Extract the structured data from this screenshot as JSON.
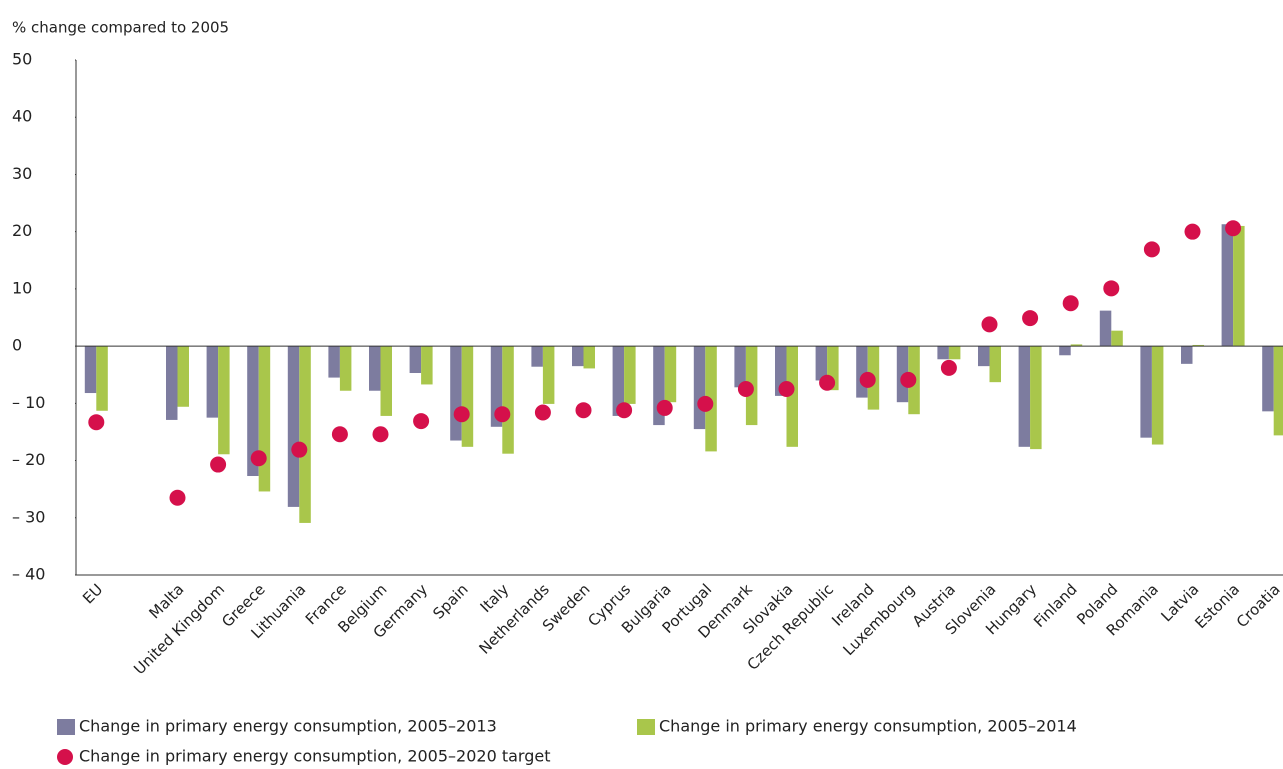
{
  "chart_data": {
    "type": "bar",
    "y_axis_label": "% change compared to 2005",
    "categories": [
      "EU",
      null,
      "Malta",
      "United Kingdom",
      "Greece",
      "Lithuania",
      "France",
      "Belgium",
      "Germany",
      "Spain",
      "Italy",
      "Netherlands",
      "Sweden",
      "Cyprus",
      "Bulgaria",
      "Portugal",
      "Denmark",
      "Slovakia",
      "Czech Republic",
      "Ireland",
      "Luxembourg",
      "Austria",
      "Slovenia",
      "Hungary",
      "Finland",
      "Poland",
      "Romania",
      "Latvia",
      "Estonia",
      "Croatia"
    ],
    "series": [
      {
        "name": "Change in primary energy consumption, 2005–2013",
        "color": "#7d7c9f",
        "mark": "bar",
        "values": [
          -8.2,
          null,
          -12.9,
          -12.5,
          -22.7,
          -28.1,
          -5.5,
          -7.8,
          -4.7,
          -16.5,
          -14.1,
          -3.6,
          -3.5,
          -12.2,
          -13.8,
          -14.5,
          -7.2,
          -8.7,
          -6.0,
          -9.0,
          -9.8,
          -2.3,
          -3.5,
          -17.6,
          -1.6,
          6.2,
          -16.0,
          -3.1,
          21.3,
          -11.4
        ]
      },
      {
        "name": "Change in primary energy consumption, 2005–2014",
        "color": "#a9c64b",
        "mark": "bar",
        "values": [
          -11.3,
          null,
          -10.6,
          -18.9,
          -25.4,
          -30.9,
          -7.8,
          -12.2,
          -6.7,
          -17.6,
          -18.8,
          -10.1,
          -3.9,
          -10.1,
          -9.8,
          -18.4,
          -13.8,
          -17.6,
          -7.7,
          -11.1,
          -11.9,
          -2.3,
          -6.3,
          -18.0,
          0.3,
          2.7,
          -17.2,
          0.2,
          21.0,
          -15.6
        ]
      },
      {
        "name": "Change in primary energy consumption, 2005–2020 target",
        "color": "#d5104b",
        "mark": "dot",
        "values": [
          -13.3,
          null,
          -26.5,
          -20.7,
          -19.6,
          -18.1,
          -15.4,
          -15.4,
          -13.1,
          -11.9,
          -11.9,
          -11.6,
          -11.2,
          -11.2,
          -10.8,
          -10.1,
          -7.5,
          -7.5,
          -6.4,
          -5.9,
          -5.9,
          -3.8,
          3.8,
          4.9,
          7.5,
          10.1,
          16.9,
          20.0,
          20.6,
          null
        ]
      }
    ],
    "ylim": [
      -40,
      50
    ],
    "yticks": [
      {
        "value": -40,
        "label": "– 40"
      },
      {
        "value": -30,
        "label": "– 30"
      },
      {
        "value": -20,
        "label": "– 20"
      },
      {
        "value": -10,
        "label": "– 10"
      },
      0,
      10,
      20,
      30,
      40,
      50
    ],
    "grid": false
  }
}
